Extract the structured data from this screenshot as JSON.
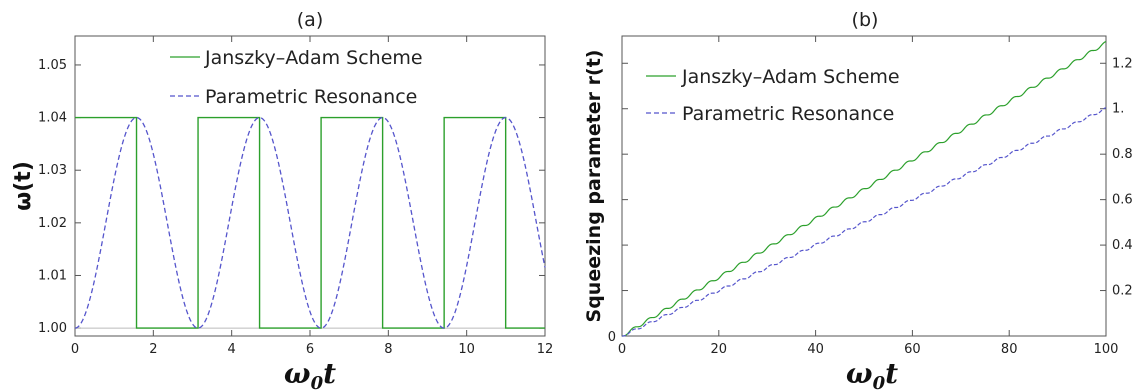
{
  "chart_data": [
    {
      "panel_label": "(a)",
      "type": "line",
      "xlabel": "ω0t",
      "ylabel": "ω(t)",
      "xlim": [
        0,
        12
      ],
      "ylim": [
        0.9985,
        1.0555
      ],
      "xticks": [
        0,
        2,
        4,
        6,
        8,
        10,
        12
      ],
      "xtick_labels": [
        "0",
        "2",
        "4",
        "6",
        "8",
        "10",
        "12"
      ],
      "yticks": [
        1.0,
        1.01,
        1.02,
        1.03,
        1.04,
        1.05
      ],
      "ytick_labels": [
        "1.00",
        "1.01",
        "1.02",
        "1.03",
        "1.04",
        "1.05"
      ],
      "grid": false,
      "legend_position": "top-center",
      "baseline": 1.0,
      "series": [
        {
          "name": "Janszky–Adam Scheme",
          "color": "#2ca02c",
          "style": "solid",
          "kind": "square-wave",
          "low": 1.0,
          "high": 1.04,
          "transitions_x": [
            1.5708,
            3.1416,
            4.7124,
            6.2832,
            7.854,
            9.4248,
            10.9956
          ],
          "start_level": 1.04
        },
        {
          "name": "Parametric Resonance",
          "color": "#5555cc",
          "style": "dashed",
          "kind": "sine-squared",
          "formula": "1 + 0.04*sin^2(t)"
        }
      ]
    },
    {
      "panel_label": "(b)",
      "type": "line",
      "xlabel": "ω0t",
      "ylabel": "Squeezing parameter r(t)",
      "xlim": [
        0,
        100
      ],
      "ylim": [
        0,
        1.32
      ],
      "xticks": [
        0,
        20,
        40,
        60,
        80,
        100
      ],
      "xtick_labels": [
        "0",
        "20",
        "40",
        "60",
        "80",
        "100"
      ],
      "yticks": [
        0.2,
        0.4,
        0.6,
        0.8,
        1.0,
        1.2
      ],
      "ytick_labels": [
        "0.2",
        "0.4",
        "0.6",
        "0.8",
        "1.",
        "1.2"
      ],
      "y_axis_side": "right",
      "origin_label": "0",
      "grid": false,
      "legend_position": "top-left",
      "series": [
        {
          "name": "Janszky–Adam Scheme",
          "color": "#2ca02c",
          "style": "solid",
          "kind": "staircase",
          "end_value": 1.29
        },
        {
          "name": "Parametric Resonance",
          "color": "#5555cc",
          "style": "dashed",
          "kind": "staircase",
          "end_value": 1.0
        }
      ]
    }
  ]
}
